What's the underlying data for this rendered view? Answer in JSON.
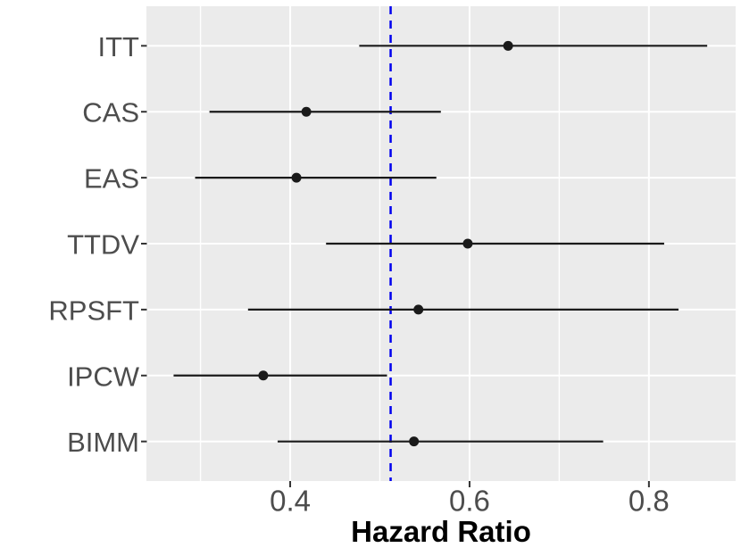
{
  "chart_data": {
    "type": "scatter",
    "subtype": "forest-pointrange",
    "title": "",
    "xlabel": "Hazard Ratio",
    "ylabel": "",
    "categories": [
      "ITT",
      "CAS",
      "EAS",
      "TTDV",
      "RPSFT",
      "IPCW",
      "BIMM"
    ],
    "series": [
      {
        "name": "Hazard Ratio estimates with confidence intervals",
        "points": [
          {
            "label": "ITT",
            "estimate": 0.643,
            "ci_lower": 0.477,
            "ci_upper": 0.865
          },
          {
            "label": "CAS",
            "estimate": 0.418,
            "ci_lower": 0.31,
            "ci_upper": 0.568
          },
          {
            "label": "EAS",
            "estimate": 0.407,
            "ci_lower": 0.294,
            "ci_upper": 0.563
          },
          {
            "label": "TTDV",
            "estimate": 0.598,
            "ci_lower": 0.44,
            "ci_upper": 0.817
          },
          {
            "label": "RPSFT",
            "estimate": 0.543,
            "ci_lower": 0.353,
            "ci_upper": 0.833
          },
          {
            "label": "IPCW",
            "estimate": 0.37,
            "ci_lower": 0.27,
            "ci_upper": 0.508
          },
          {
            "label": "BIMM",
            "estimate": 0.538,
            "ci_lower": 0.386,
            "ci_upper": 0.749
          }
        ]
      }
    ],
    "x_ticks": [
      0.4,
      0.6,
      0.8
    ],
    "x_tick_labels": [
      "0.4",
      "0.6",
      "0.8"
    ],
    "x_minor_ticks": [
      0.3,
      0.5,
      0.7
    ],
    "xlim": [
      0.2397,
      0.8967
    ],
    "reference_line": {
      "x": 0.512,
      "style": "dashed",
      "color": "#0000EE"
    },
    "grid": true,
    "legend_position": "none"
  },
  "styles": {
    "figure_bg": "#FFFFFF",
    "panel_bg": "#EBEBEB",
    "grid_color": "#FFFFFF",
    "data_color": "#1A1A1A",
    "reference_color": "#0000EE",
    "tick_label_color": "#4D4D4D",
    "category_label_color": "#4D4D4D",
    "axis_title_color": "#000000",
    "tick_mark_color": "#333333"
  }
}
